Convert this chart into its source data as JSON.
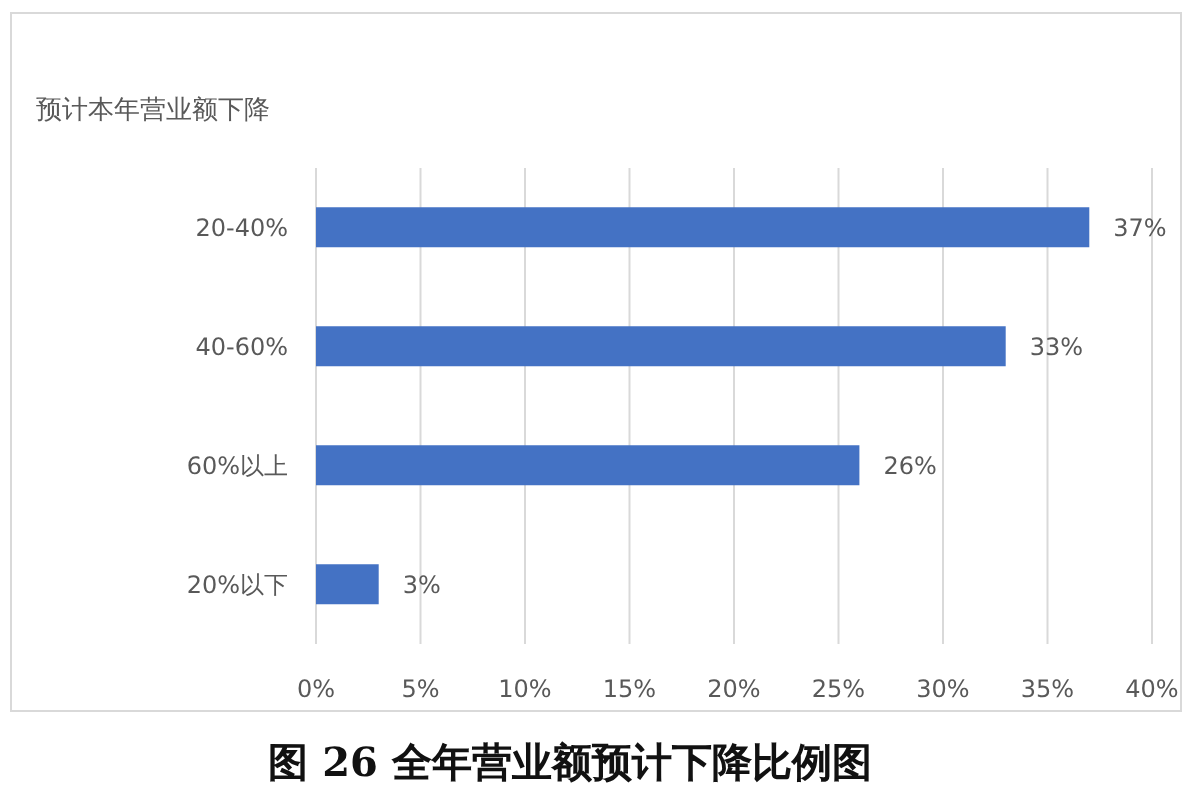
{
  "chart_data": {
    "type": "bar",
    "orientation": "horizontal",
    "title": "图 26 全年营业额预计下降比例图",
    "ylabel": "预计本年营业额下降",
    "categories": [
      "20-40%",
      "40-60%",
      "60%以上",
      "20%以下"
    ],
    "values": [
      37,
      33,
      26,
      3
    ],
    "value_labels": [
      "37%",
      "33%",
      "26%",
      "3%"
    ],
    "color": "#4472c4",
    "xlim": [
      0,
      40
    ],
    "xticks": [
      {
        "value": 0,
        "label": "0%"
      },
      {
        "value": 5,
        "label": "5%"
      },
      {
        "value": 10,
        "label": "10%"
      },
      {
        "value": 15,
        "label": "15%"
      },
      {
        "value": 20,
        "label": "20%"
      },
      {
        "value": 25,
        "label": "25%"
      },
      {
        "value": 30,
        "label": "30%"
      },
      {
        "value": 35,
        "label": "35%"
      },
      {
        "value": 40,
        "label": "40%"
      }
    ],
    "grid": "x"
  }
}
